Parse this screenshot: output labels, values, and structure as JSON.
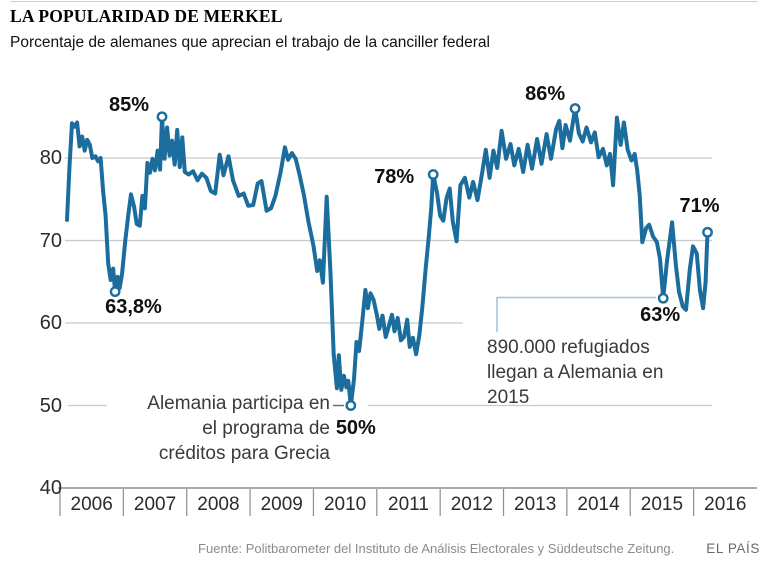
{
  "header": {
    "title": "LA POPULARIDAD DE MERKEL",
    "subtitle": "Porcentaje de alemanes que aprecian el trabajo de la canciller federal"
  },
  "footer": {
    "source": "Fuente: Politbarometer del Instituto de Análisis Electorales y Süddeutsche Zeitung.",
    "brand": "EL PAÍS"
  },
  "colors": {
    "line": "#1b6d9d",
    "marker_fill": "#ffffff",
    "grid": "#c9c9c9",
    "axis": "#8f8f8f",
    "callout": "#a3c6da",
    "leader": "#6e6e6e"
  },
  "chart_data": {
    "type": "line",
    "title": "LA POPULARIDAD DE MERKEL",
    "subtitle": "Porcentaje de alemanes que aprecian el trabajo de la canciller federal",
    "ylabel": "",
    "xlabel": "",
    "ylim": [
      40,
      88
    ],
    "yticks": [
      40,
      50,
      60,
      70,
      80
    ],
    "grid": "horizontal",
    "years": [
      "2006",
      "2007",
      "2008",
      "2009",
      "2010",
      "2011",
      "2012",
      "2013",
      "2014",
      "2015",
      "2016"
    ],
    "series": [
      {
        "name": "Porcentaje que aprecia el trabajo de Merkel",
        "points": [
          [
            2006.11,
            72.5
          ],
          [
            2006.15,
            79.0
          ],
          [
            2006.19,
            84.2
          ],
          [
            2006.23,
            83.8
          ],
          [
            2006.27,
            84.3
          ],
          [
            2006.31,
            81.4
          ],
          [
            2006.35,
            82.6
          ],
          [
            2006.39,
            80.9
          ],
          [
            2006.43,
            82.2
          ],
          [
            2006.47,
            81.6
          ],
          [
            2006.51,
            80.0
          ],
          [
            2006.56,
            80.2
          ],
          [
            2006.6,
            79.6
          ],
          [
            2006.64,
            80.0
          ],
          [
            2006.68,
            76.0
          ],
          [
            2006.72,
            73.0
          ],
          [
            2006.76,
            67.2
          ],
          [
            2006.8,
            65.2
          ],
          [
            2006.84,
            66.6
          ],
          [
            2006.87,
            63.8
          ],
          [
            2006.91,
            65.6
          ],
          [
            2006.94,
            64.2
          ],
          [
            2006.98,
            66.0
          ],
          [
            2007.03,
            70.0
          ],
          [
            2007.08,
            73.2
          ],
          [
            2007.12,
            75.6
          ],
          [
            2007.17,
            74.1
          ],
          [
            2007.21,
            72.0
          ],
          [
            2007.26,
            71.8
          ],
          [
            2007.3,
            75.4
          ],
          [
            2007.34,
            73.9
          ],
          [
            2007.38,
            79.4
          ],
          [
            2007.42,
            78.2
          ],
          [
            2007.46,
            79.9
          ],
          [
            2007.5,
            78.5
          ],
          [
            2007.54,
            80.9
          ],
          [
            2007.58,
            78.6
          ],
          [
            2007.61,
            85.0
          ],
          [
            2007.65,
            79.9
          ],
          [
            2007.69,
            83.7
          ],
          [
            2007.73,
            80.3
          ],
          [
            2007.77,
            82.1
          ],
          [
            2007.81,
            79.2
          ],
          [
            2007.85,
            83.4
          ],
          [
            2007.89,
            78.9
          ],
          [
            2007.93,
            82.5
          ],
          [
            2007.97,
            78.3
          ],
          [
            2008.03,
            78.0
          ],
          [
            2008.1,
            78.4
          ],
          [
            2008.17,
            77.3
          ],
          [
            2008.24,
            78.1
          ],
          [
            2008.31,
            77.6
          ],
          [
            2008.38,
            76.0
          ],
          [
            2008.45,
            75.7
          ],
          [
            2008.52,
            80.4
          ],
          [
            2008.58,
            77.9
          ],
          [
            2008.66,
            80.2
          ],
          [
            2008.73,
            77.3
          ],
          [
            2008.82,
            75.4
          ],
          [
            2008.9,
            75.7
          ],
          [
            2008.97,
            74.2
          ],
          [
            2009.05,
            74.3
          ],
          [
            2009.12,
            76.9
          ],
          [
            2009.18,
            77.2
          ],
          [
            2009.26,
            73.6
          ],
          [
            2009.33,
            73.9
          ],
          [
            2009.4,
            75.4
          ],
          [
            2009.48,
            78.2
          ],
          [
            2009.55,
            81.3
          ],
          [
            2009.6,
            79.8
          ],
          [
            2009.66,
            80.6
          ],
          [
            2009.72,
            79.9
          ],
          [
            2009.78,
            78.0
          ],
          [
            2009.85,
            75.5
          ],
          [
            2009.92,
            72.3
          ],
          [
            2010.0,
            69.4
          ],
          [
            2010.06,
            66.3
          ],
          [
            2010.1,
            67.6
          ],
          [
            2010.15,
            64.9
          ],
          [
            2010.21,
            75.3
          ],
          [
            2010.27,
            66.0
          ],
          [
            2010.32,
            56.2
          ],
          [
            2010.37,
            52.1
          ],
          [
            2010.4,
            56.1
          ],
          [
            2010.44,
            51.9
          ],
          [
            2010.48,
            53.6
          ],
          [
            2010.52,
            52.2
          ],
          [
            2010.55,
            53.0
          ],
          [
            2010.59,
            50.0
          ],
          [
            2010.64,
            53.2
          ],
          [
            2010.68,
            57.7
          ],
          [
            2010.72,
            56.6
          ],
          [
            2010.77,
            60.1
          ],
          [
            2010.82,
            64.0
          ],
          [
            2010.86,
            61.8
          ],
          [
            2010.9,
            63.6
          ],
          [
            2010.95,
            62.8
          ],
          [
            2011.0,
            61.0
          ],
          [
            2011.04,
            59.3
          ],
          [
            2011.09,
            60.9
          ],
          [
            2011.14,
            58.3
          ],
          [
            2011.19,
            59.6
          ],
          [
            2011.24,
            61.0
          ],
          [
            2011.28,
            59.0
          ],
          [
            2011.33,
            60.6
          ],
          [
            2011.38,
            57.9
          ],
          [
            2011.43,
            58.3
          ],
          [
            2011.48,
            60.4
          ],
          [
            2011.52,
            57.1
          ],
          [
            2011.57,
            58.2
          ],
          [
            2011.62,
            56.2
          ],
          [
            2011.67,
            58.5
          ],
          [
            2011.72,
            62.0
          ],
          [
            2011.77,
            66.5
          ],
          [
            2011.82,
            70.5
          ],
          [
            2011.86,
            74.0
          ],
          [
            2011.89,
            78.0
          ],
          [
            2011.95,
            75.8
          ],
          [
            2012.0,
            73.0
          ],
          [
            2012.05,
            72.4
          ],
          [
            2012.1,
            75.1
          ],
          [
            2012.15,
            76.3
          ],
          [
            2012.2,
            72.3
          ],
          [
            2012.26,
            69.9
          ],
          [
            2012.32,
            76.7
          ],
          [
            2012.39,
            77.6
          ],
          [
            2012.46,
            75.2
          ],
          [
            2012.52,
            77.1
          ],
          [
            2012.59,
            74.9
          ],
          [
            2012.66,
            78.1
          ],
          [
            2012.72,
            81.0
          ],
          [
            2012.78,
            77.6
          ],
          [
            2012.84,
            80.9
          ],
          [
            2012.9,
            78.8
          ],
          [
            2012.97,
            83.3
          ],
          [
            2013.04,
            79.9
          ],
          [
            2013.11,
            81.7
          ],
          [
            2013.17,
            79.1
          ],
          [
            2013.24,
            81.1
          ],
          [
            2013.31,
            78.3
          ],
          [
            2013.38,
            81.6
          ],
          [
            2013.45,
            78.7
          ],
          [
            2013.53,
            82.3
          ],
          [
            2013.6,
            79.3
          ],
          [
            2013.68,
            82.9
          ],
          [
            2013.75,
            79.9
          ],
          [
            2013.83,
            83.5
          ],
          [
            2013.88,
            84.5
          ],
          [
            2013.93,
            81.2
          ],
          [
            2013.98,
            84.0
          ],
          [
            2014.05,
            82.1
          ],
          [
            2014.13,
            86.0
          ],
          [
            2014.19,
            83.0
          ],
          [
            2014.25,
            82.0
          ],
          [
            2014.31,
            83.7
          ],
          [
            2014.38,
            81.9
          ],
          [
            2014.44,
            83.1
          ],
          [
            2014.5,
            80.1
          ],
          [
            2014.57,
            81.1
          ],
          [
            2014.63,
            79.1
          ],
          [
            2014.68,
            80.5
          ],
          [
            2014.73,
            76.7
          ],
          [
            2014.79,
            84.9
          ],
          [
            2014.85,
            81.6
          ],
          [
            2014.9,
            84.3
          ],
          [
            2014.96,
            81.0
          ],
          [
            2015.02,
            79.7
          ],
          [
            2015.07,
            80.5
          ],
          [
            2015.11,
            78.5
          ],
          [
            2015.15,
            75.5
          ],
          [
            2015.19,
            69.8
          ],
          [
            2015.25,
            71.5
          ],
          [
            2015.3,
            71.9
          ],
          [
            2015.36,
            70.5
          ],
          [
            2015.42,
            69.8
          ],
          [
            2015.47,
            67.8
          ],
          [
            2015.52,
            63.0
          ],
          [
            2015.58,
            67.5
          ],
          [
            2015.66,
            72.2
          ],
          [
            2015.72,
            67.0
          ],
          [
            2015.77,
            63.8
          ],
          [
            2015.83,
            62.0
          ],
          [
            2015.88,
            61.6
          ],
          [
            2015.94,
            66.5
          ],
          [
            2015.99,
            69.3
          ],
          [
            2016.05,
            68.4
          ],
          [
            2016.1,
            64.0
          ],
          [
            2016.15,
            61.8
          ],
          [
            2016.19,
            65.0
          ],
          [
            2016.22,
            71.0
          ]
        ]
      }
    ],
    "markers": [
      {
        "x": 2006.87,
        "value": 63.8,
        "label": "63,8%"
      },
      {
        "x": 2007.61,
        "value": 85.0,
        "label": "85%"
      },
      {
        "x": 2010.59,
        "value": 50.0,
        "label": "50%"
      },
      {
        "x": 2011.89,
        "value": 78.0,
        "label": "78%"
      },
      {
        "x": 2014.13,
        "value": 86.0,
        "label": "86%"
      },
      {
        "x": 2015.52,
        "value": 63.0,
        "label": "63%"
      },
      {
        "x": 2016.22,
        "value": 71.0,
        "label": "71%"
      }
    ],
    "annotations": {
      "greece": {
        "lines": [
          "Alemania participa en",
          "el programa de",
          "créditos para Grecia"
        ]
      },
      "refugees": {
        "lines": [
          "890.000 refugiados",
          "llegan a Alemania en",
          "2015"
        ]
      }
    },
    "legend": "none"
  }
}
